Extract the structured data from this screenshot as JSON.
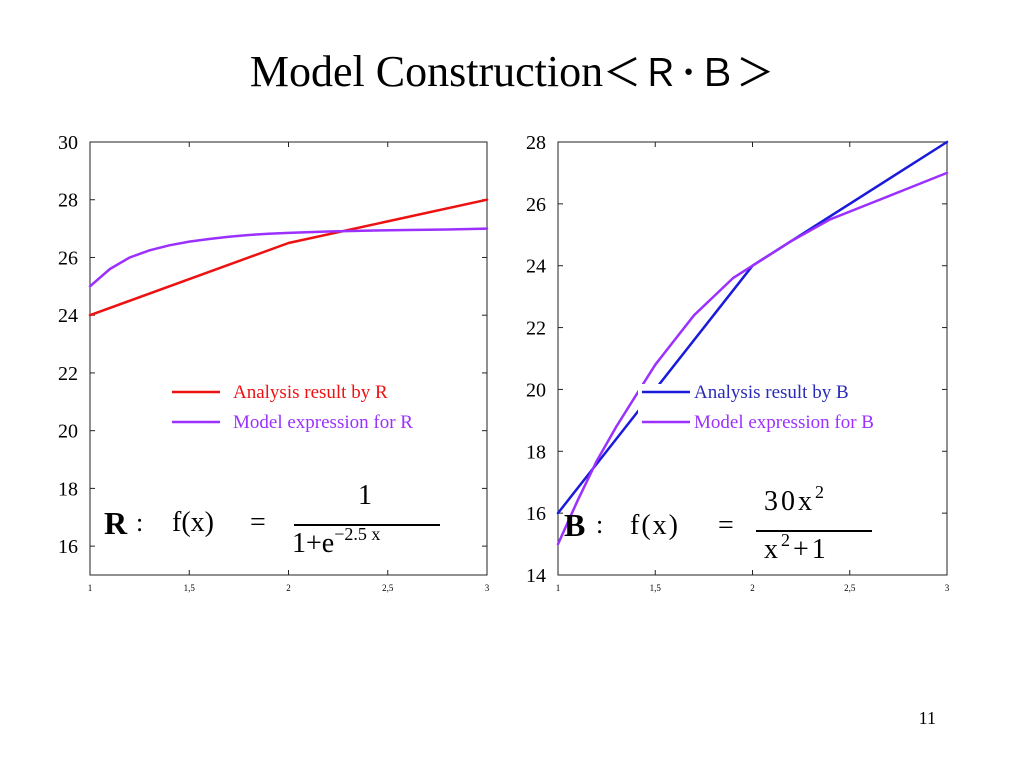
{
  "slide": {
    "title": "Model Construction",
    "title_suffix": "＜Ｒ･Ｂ＞",
    "page_number": "11"
  },
  "formula_r": {
    "name": "R",
    "colon": ":",
    "lhs": "f(x)",
    "equals": "=",
    "numerator": "1",
    "denominator_base": "1+e",
    "denominator_exponent": "−2.5 x"
  },
  "formula_b": {
    "name": "B",
    "colon": ":",
    "lhs": "f(x)",
    "equals": "=",
    "numerator_base": "30x",
    "numerator_exponent": "2",
    "denominator_base": "x",
    "denominator_exponent": "2",
    "denominator_tail": "+1"
  },
  "colors": {
    "analysis_r": "#ee1111",
    "analysis_b": "#1a1adc",
    "model": "#9b30ff",
    "label_b": "#2a2ab8",
    "axis": "#222222"
  },
  "chart_data": [
    {
      "id": "chart-r",
      "type": "line",
      "title": "",
      "xlabel": "",
      "ylabel": "",
      "xlim": [
        1,
        3
      ],
      "ylim": [
        15,
        30
      ],
      "x_ticks": [
        1,
        1.5,
        2,
        2.5,
        3
      ],
      "x_tick_labels": [
        "1",
        "1,5",
        "2",
        "2,5",
        "3"
      ],
      "y_ticks": [
        16,
        18,
        20,
        22,
        24,
        26,
        28,
        30
      ],
      "y_tick_labels": [
        "16",
        "18",
        "20",
        "22",
        "24",
        "26",
        "28",
        "30"
      ],
      "legend_position": "bottom-right",
      "series": [
        {
          "name": "Analysis result by R",
          "color": "#ee1111",
          "x": [
            1,
            2,
            3
          ],
          "y": [
            24,
            26.5,
            28
          ]
        },
        {
          "name": "Model expression for R",
          "color": "#9b30ff",
          "x": [
            1,
            1.1,
            1.2,
            1.3,
            1.4,
            1.5,
            1.6,
            1.7,
            1.8,
            1.9,
            2,
            2.2,
            2.4,
            2.6,
            2.8,
            3
          ],
          "y": [
            25,
            25.6,
            26,
            26.25,
            26.42,
            26.55,
            26.64,
            26.72,
            26.78,
            26.82,
            26.85,
            26.9,
            26.93,
            26.95,
            26.97,
            27
          ]
        }
      ]
    },
    {
      "id": "chart-b",
      "type": "line",
      "title": "",
      "xlabel": "",
      "ylabel": "",
      "xlim": [
        1,
        3
      ],
      "ylim": [
        14,
        28
      ],
      "x_ticks": [
        1,
        1.5,
        2,
        2.5,
        3
      ],
      "x_tick_labels": [
        "1",
        "1,5",
        "2",
        "2,5",
        "3"
      ],
      "y_ticks": [
        14,
        16,
        18,
        20,
        22,
        24,
        26,
        28
      ],
      "y_tick_labels": [
        "14",
        "16",
        "18",
        "20",
        "22",
        "24",
        "26",
        "28"
      ],
      "legend_position": "bottom-right",
      "series": [
        {
          "name": "Analysis result by B",
          "color": "#1a1adc",
          "x": [
            1,
            2,
            3
          ],
          "y": [
            16,
            24,
            28
          ]
        },
        {
          "name": "Model expression for B",
          "color": "#9b30ff",
          "x": [
            1,
            1.1,
            1.2,
            1.3,
            1.4,
            1.5,
            1.6,
            1.7,
            1.8,
            1.9,
            2,
            2.2,
            2.4,
            2.6,
            2.8,
            3
          ],
          "y": [
            15,
            16.4,
            17.7,
            18.8,
            19.8,
            20.8,
            21.6,
            22.4,
            23.0,
            23.6,
            24,
            24.8,
            25.5,
            26.0,
            26.5,
            27
          ]
        }
      ]
    }
  ]
}
